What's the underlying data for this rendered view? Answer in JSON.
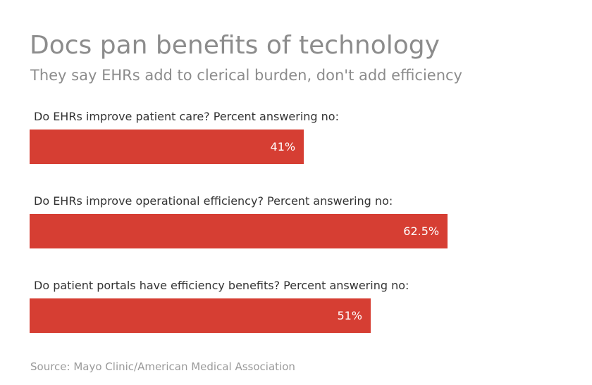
{
  "header": {
    "title": "Docs pan benefits of technology",
    "subtitle": "They say EHRs add to clerical burden, don't add efficiency"
  },
  "chart_data": {
    "type": "bar",
    "orientation": "horizontal",
    "categories": [
      "Do EHRs improve patient care? Percent answering no:",
      "Do EHRs improve operational efficiency? Percent answering no:",
      "Do patient portals have efficiency benefits? Percent answering no:"
    ],
    "values": [
      41,
      62.5,
      51
    ],
    "value_labels": [
      "41%",
      "62.5%",
      "51%"
    ],
    "xlim": [
      0,
      100
    ],
    "bar_color": "#d63e33",
    "grid": false,
    "legend": false,
    "title": "Docs pan benefits of technology",
    "subtitle": "They say EHRs add to clerical burden, don't add efficiency"
  },
  "footer": {
    "source": "Source: Mayo Clinic/American Medical Association"
  }
}
